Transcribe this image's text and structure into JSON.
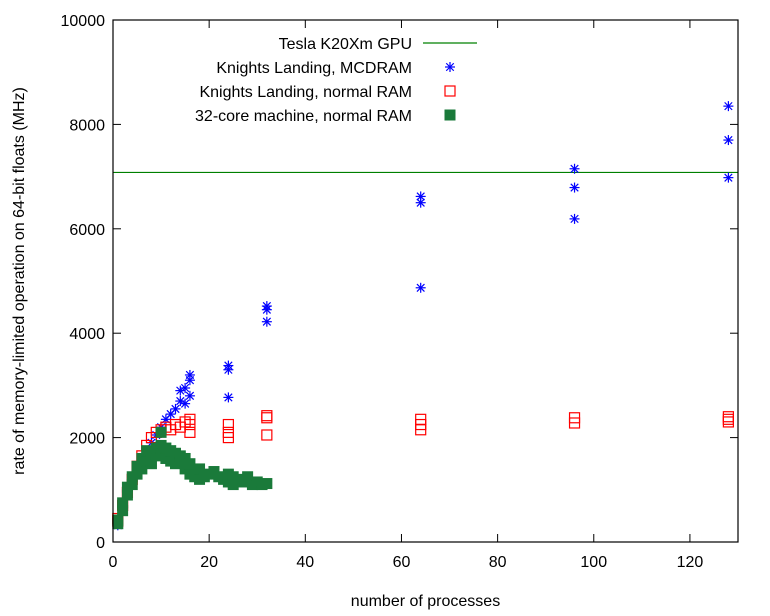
{
  "chart_data": {
    "type": "scatter",
    "xlabel": "number of processes",
    "ylabel": "rate of memory-limited operation on 64-bit floats (MHz)",
    "xlim": [
      0,
      130
    ],
    "ylim": [
      0,
      10000
    ],
    "xticks": [
      0,
      20,
      40,
      60,
      80,
      100,
      120
    ],
    "yticks": [
      0,
      2000,
      4000,
      6000,
      8000,
      10000
    ],
    "grid": false,
    "legend_position": "top-left",
    "series": [
      {
        "name": "Tesla K20Xm GPU",
        "style": "line",
        "color": "#008000",
        "y": 7080
      },
      {
        "name": "Knights Landing, MCDRAM",
        "style": "asterisk",
        "color": "#0000ff",
        "points": [
          [
            1,
            320
          ],
          [
            1,
            380
          ],
          [
            2,
            600
          ],
          [
            2,
            720
          ],
          [
            3,
            950
          ],
          [
            4,
            1150
          ],
          [
            5,
            1350
          ],
          [
            6,
            1550
          ],
          [
            7,
            1700
          ],
          [
            8,
            1900
          ],
          [
            9,
            2050
          ],
          [
            10,
            2200
          ],
          [
            11,
            2350
          ],
          [
            12,
            2450
          ],
          [
            13,
            2550
          ],
          [
            14,
            2700
          ],
          [
            14,
            2900
          ],
          [
            15,
            2650
          ],
          [
            15,
            2950
          ],
          [
            16,
            3100
          ],
          [
            16,
            3200
          ],
          [
            16,
            2800
          ],
          [
            24,
            3300
          ],
          [
            24,
            3380
          ],
          [
            24,
            2770
          ],
          [
            32,
            4220
          ],
          [
            32,
            4450
          ],
          [
            32,
            4520
          ],
          [
            64,
            4870
          ],
          [
            64,
            6500
          ],
          [
            64,
            6620
          ],
          [
            96,
            6190
          ],
          [
            96,
            6790
          ],
          [
            96,
            7150
          ],
          [
            128,
            6980
          ],
          [
            128,
            7700
          ],
          [
            128,
            8350
          ]
        ]
      },
      {
        "name": "Knights Landing, normal RAM",
        "style": "open-square",
        "color": "#ff0000",
        "points": [
          [
            1,
            400
          ],
          [
            1,
            450
          ],
          [
            2,
            700
          ],
          [
            3,
            950
          ],
          [
            4,
            1200
          ],
          [
            5,
            1450
          ],
          [
            6,
            1650
          ],
          [
            7,
            1850
          ],
          [
            8,
            2000
          ],
          [
            9,
            2100
          ],
          [
            10,
            2150
          ],
          [
            11,
            2200
          ],
          [
            12,
            2150
          ],
          [
            13,
            2250
          ],
          [
            14,
            2200
          ],
          [
            15,
            2300
          ],
          [
            16,
            2100
          ],
          [
            16,
            2250
          ],
          [
            16,
            2350
          ],
          [
            24,
            2000
          ],
          [
            24,
            2100
          ],
          [
            24,
            2250
          ],
          [
            32,
            2050
          ],
          [
            32,
            2380
          ],
          [
            32,
            2420
          ],
          [
            64,
            2150
          ],
          [
            64,
            2250
          ],
          [
            64,
            2350
          ],
          [
            96,
            2280
          ],
          [
            96,
            2380
          ],
          [
            128,
            2300
          ],
          [
            128,
            2350
          ],
          [
            128,
            2400
          ]
        ]
      },
      {
        "name": "32-core machine, normal RAM",
        "style": "filled-square",
        "color": "#1a7a3a",
        "points": [
          [
            1,
            350
          ],
          [
            1,
            420
          ],
          [
            2,
            600
          ],
          [
            2,
            750
          ],
          [
            3,
            900
          ],
          [
            3,
            1050
          ],
          [
            4,
            1100
          ],
          [
            4,
            1250
          ],
          [
            5,
            1300
          ],
          [
            5,
            1450
          ],
          [
            6,
            1400
          ],
          [
            6,
            1600
          ],
          [
            7,
            1550
          ],
          [
            7,
            1750
          ],
          [
            8,
            1500
          ],
          [
            8,
            1700
          ],
          [
            9,
            1650
          ],
          [
            9,
            1800
          ],
          [
            10,
            1700
          ],
          [
            10,
            1850
          ],
          [
            10,
            2100
          ],
          [
            11,
            1600
          ],
          [
            11,
            1800
          ],
          [
            12,
            1550
          ],
          [
            12,
            1750
          ],
          [
            13,
            1500
          ],
          [
            13,
            1700
          ],
          [
            14,
            1550
          ],
          [
            14,
            1650
          ],
          [
            15,
            1400
          ],
          [
            15,
            1600
          ],
          [
            16,
            1300
          ],
          [
            16,
            1500
          ],
          [
            17,
            1250
          ],
          [
            18,
            1200
          ],
          [
            18,
            1400
          ],
          [
            19,
            1250
          ],
          [
            20,
            1300
          ],
          [
            21,
            1350
          ],
          [
            22,
            1250
          ],
          [
            23,
            1200
          ],
          [
            24,
            1150
          ],
          [
            24,
            1300
          ],
          [
            25,
            1100
          ],
          [
            25,
            1250
          ],
          [
            26,
            1200
          ],
          [
            27,
            1150
          ],
          [
            28,
            1250
          ],
          [
            29,
            1100
          ],
          [
            30,
            1150
          ],
          [
            31,
            1100
          ],
          [
            32,
            1120
          ]
        ]
      }
    ]
  }
}
